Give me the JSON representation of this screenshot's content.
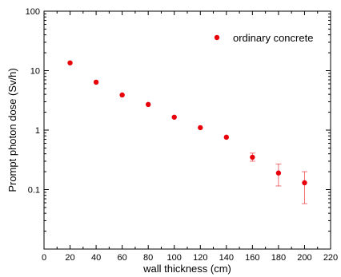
{
  "chart_data": {
    "type": "scatter",
    "xlabel": "wall thickness (cm)",
    "ylabel": "Prompt photon dose (Sv/h)",
    "xlim": [
      0,
      220
    ],
    "ylim": [
      0.01,
      100
    ],
    "yscale": "log",
    "xticks": [
      0,
      20,
      40,
      60,
      80,
      100,
      120,
      140,
      160,
      180,
      200,
      220
    ],
    "yticks": [
      0.1,
      1,
      10,
      100
    ],
    "ytick_labels": [
      "0.1",
      "1",
      "10",
      "100"
    ],
    "grid": false,
    "legend": {
      "position": "top-right"
    },
    "series": [
      {
        "name": "ordinary concrete",
        "color": "#e8000b",
        "points": [
          {
            "x": 20,
            "y": 13.5,
            "err_low": null,
            "err_high": null
          },
          {
            "x": 40,
            "y": 6.4,
            "err_low": null,
            "err_high": null
          },
          {
            "x": 60,
            "y": 3.9,
            "err_low": null,
            "err_high": null
          },
          {
            "x": 80,
            "y": 2.7,
            "err_low": null,
            "err_high": null
          },
          {
            "x": 100,
            "y": 1.65,
            "err_low": null,
            "err_high": null
          },
          {
            "x": 120,
            "y": 1.1,
            "err_low": null,
            "err_high": null
          },
          {
            "x": 140,
            "y": 0.76,
            "err_low": null,
            "err_high": null
          },
          {
            "x": 160,
            "y": 0.35,
            "err_low": 0.3,
            "err_high": 0.41
          },
          {
            "x": 180,
            "y": 0.19,
            "err_low": 0.115,
            "err_high": 0.27
          },
          {
            "x": 200,
            "y": 0.13,
            "err_low": 0.058,
            "err_high": 0.2
          }
        ]
      }
    ]
  }
}
